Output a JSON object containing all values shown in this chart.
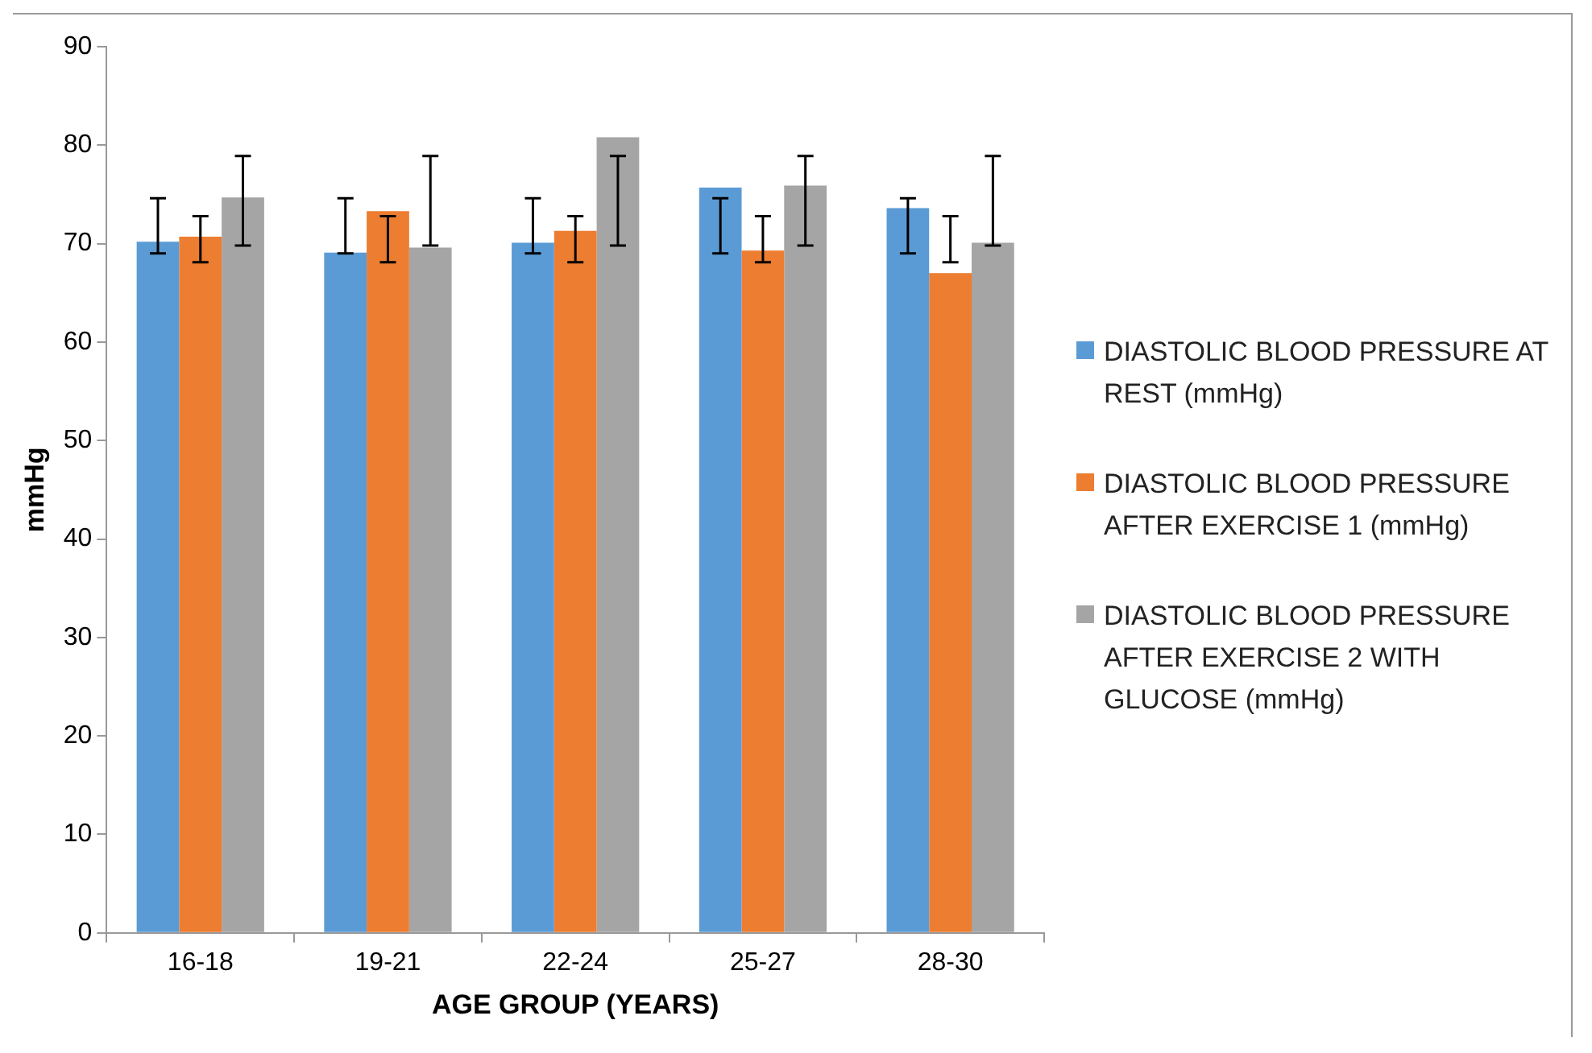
{
  "chart_data": {
    "type": "bar",
    "xlabel": "AGE GROUP (YEARS)",
    "ylabel": "mmHg",
    "categories": [
      "16-18",
      "19-21",
      "22-24",
      "25-27",
      "28-30"
    ],
    "series": [
      {
        "name": "DIASTOLIC BLOOD PRESSURE AT REST (mmHg)",
        "color": "#5b9bd5",
        "values": [
          70.2,
          69.1,
          70.1,
          75.7,
          73.6
        ],
        "errors": [
          [
            69.0,
            74.6
          ],
          [
            69.0,
            74.6
          ],
          [
            69.0,
            74.6
          ],
          [
            69.0,
            74.6
          ],
          [
            69.0,
            74.6
          ]
        ]
      },
      {
        "name": "DIASTOLIC BLOOD PRESSURE AFTER EXERCISE 1 (mmHg)",
        "color": "#ed7d31",
        "values": [
          70.7,
          73.3,
          71.3,
          69.3,
          67.0
        ],
        "errors": [
          [
            68.1,
            72.8
          ],
          [
            68.1,
            72.8
          ],
          [
            68.1,
            72.8
          ],
          [
            68.1,
            72.8
          ],
          [
            68.1,
            72.8
          ]
        ]
      },
      {
        "name": "DIASTOLIC BLOOD PRESSURE AFTER EXERCISE 2 WITH GLUCOSE (mmHg)",
        "color": "#a5a5a5",
        "values": [
          74.7,
          69.6,
          80.8,
          75.9,
          70.1
        ],
        "errors": [
          [
            69.8,
            78.9
          ],
          [
            69.8,
            78.9
          ],
          [
            69.8,
            78.9
          ],
          [
            69.8,
            78.9
          ],
          [
            69.8,
            78.9
          ]
        ]
      }
    ],
    "ylim": [
      0,
      90
    ],
    "yticks": [
      0,
      10,
      20,
      30,
      40,
      50,
      60,
      70,
      80,
      90
    ],
    "grid": false,
    "legend": "right"
  }
}
